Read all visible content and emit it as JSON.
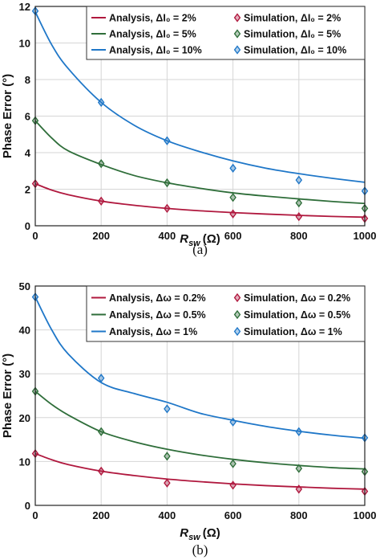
{
  "figure": {
    "width": 474,
    "height": 697
  },
  "chart_data": [
    {
      "type": "line",
      "caption": "(a)",
      "xlabel_main": "R",
      "xlabel_sub": "sw",
      "xlabel_unit": "(Ω)",
      "ylabel": "Phase Error (°)",
      "xlim": [
        0,
        1000
      ],
      "ylim": [
        0,
        12
      ],
      "xticks": [
        0,
        200,
        400,
        600,
        800,
        1000
      ],
      "yticks": [
        0,
        2,
        4,
        6,
        8,
        10,
        12
      ],
      "grid": true,
      "legend_position": "top-right",
      "series": [
        {
          "legend_analysis": "Analysis, ΔI₀ = 2%",
          "legend_simulation": "Simulation, ΔI₀ = 2%",
          "color": "#b0183e",
          "curve": {
            "x": [
              0,
              50,
              100,
              200,
              300,
              400,
              500,
              600,
              700,
              800,
              900,
              1000
            ],
            "y": [
              2.3,
              1.95,
              1.7,
              1.35,
              1.12,
              0.95,
              0.82,
              0.72,
              0.64,
              0.57,
              0.51,
              0.47
            ]
          },
          "points": {
            "x": [
              0,
              200,
              400,
              600,
              800,
              1000
            ],
            "y": [
              2.3,
              1.35,
              0.95,
              0.65,
              0.5,
              0.4
            ]
          }
        },
        {
          "legend_analysis": "Analysis, ΔI₀ = 5%",
          "legend_simulation": "Simulation, ΔI₀ = 5%",
          "color": "#2f6e3a",
          "curve": {
            "x": [
              0,
              50,
              100,
              200,
              300,
              400,
              500,
              600,
              700,
              800,
              900,
              1000
            ],
            "y": [
              5.75,
              4.8,
              4.1,
              3.35,
              2.75,
              2.35,
              2.05,
              1.8,
              1.62,
              1.47,
              1.33,
              1.22
            ]
          },
          "points": {
            "x": [
              0,
              200,
              400,
              600,
              800,
              1000
            ],
            "y": [
              5.75,
              3.4,
              2.35,
              1.55,
              1.25,
              0.95
            ]
          }
        },
        {
          "legend_analysis": "Analysis, ΔI₀ = 10%",
          "legend_simulation": "Simulation, ΔI₀ = 10%",
          "color": "#1f77c8",
          "curve": {
            "x": [
              0,
              50,
              100,
              200,
              300,
              400,
              500,
              600,
              700,
              800,
              900,
              1000
            ],
            "y": [
              11.7,
              9.9,
              8.6,
              6.75,
              5.5,
              4.65,
              4.05,
              3.55,
              3.15,
              2.85,
              2.6,
              2.38
            ]
          },
          "points": {
            "x": [
              0,
              200,
              400,
              600,
              800,
              1000
            ],
            "y": [
              11.75,
              6.75,
              4.65,
              3.15,
              2.5,
              1.9
            ]
          }
        }
      ]
    },
    {
      "type": "line",
      "caption": "(b)",
      "xlabel_main": "R",
      "xlabel_sub": "sw",
      "xlabel_unit": "(Ω)",
      "ylabel": "Phase Error (°)",
      "xlim": [
        0,
        1000
      ],
      "ylim": [
        0,
        50
      ],
      "xticks": [
        0,
        200,
        400,
        600,
        800,
        1000
      ],
      "yticks": [
        0,
        10,
        20,
        30,
        40,
        50
      ],
      "grid": true,
      "legend_position": "top-right",
      "series": [
        {
          "legend_analysis": "Analysis, Δω = 0.2%",
          "legend_simulation": "Simulation, Δω = 0.2%",
          "color": "#b0183e",
          "curve": {
            "x": [
              0,
              50,
              100,
              200,
              300,
              400,
              500,
              600,
              700,
              800,
              900,
              1000
            ],
            "y": [
              11.8,
              10.4,
              9.3,
              7.8,
              6.8,
              6.0,
              5.4,
              4.9,
              4.5,
              4.2,
              3.9,
              3.7
            ]
          },
          "points": {
            "x": [
              0,
              200,
              400,
              600,
              800,
              1000
            ],
            "y": [
              11.8,
              7.8,
              5.1,
              4.6,
              3.7,
              3.2
            ]
          }
        },
        {
          "legend_analysis": "Analysis, Δω = 0.5%",
          "legend_simulation": "Simulation, Δω = 0.5%",
          "color": "#2f6e3a",
          "curve": {
            "x": [
              0,
              50,
              100,
              200,
              300,
              400,
              500,
              600,
              700,
              800,
              900,
              1000
            ],
            "y": [
              26.0,
              23.0,
              20.6,
              16.8,
              14.5,
              12.8,
              11.5,
              10.5,
              9.7,
              9.1,
              8.6,
              8.3
            ]
          },
          "points": {
            "x": [
              0,
              200,
              400,
              600,
              800,
              1000
            ],
            "y": [
              26.0,
              16.8,
              11.2,
              9.5,
              8.4,
              7.7
            ]
          }
        },
        {
          "legend_analysis": "Analysis, Δω = 1%",
          "legend_simulation": "Simulation, Δω = 1%",
          "color": "#1f77c8",
          "curve": {
            "x": [
              0,
              50,
              100,
              200,
              300,
              400,
              500,
              600,
              700,
              800,
              900,
              1000
            ],
            "y": [
              47.5,
              40.0,
              34.5,
              28.0,
              25.5,
              23.5,
              21.0,
              19.4,
              18.0,
              16.9,
              16.0,
              15.3
            ]
          },
          "points": {
            "x": [
              0,
              200,
              400,
              600,
              800,
              1000
            ],
            "y": [
              47.5,
              29.0,
              22.0,
              19.0,
              16.8,
              15.4
            ]
          }
        }
      ]
    }
  ]
}
